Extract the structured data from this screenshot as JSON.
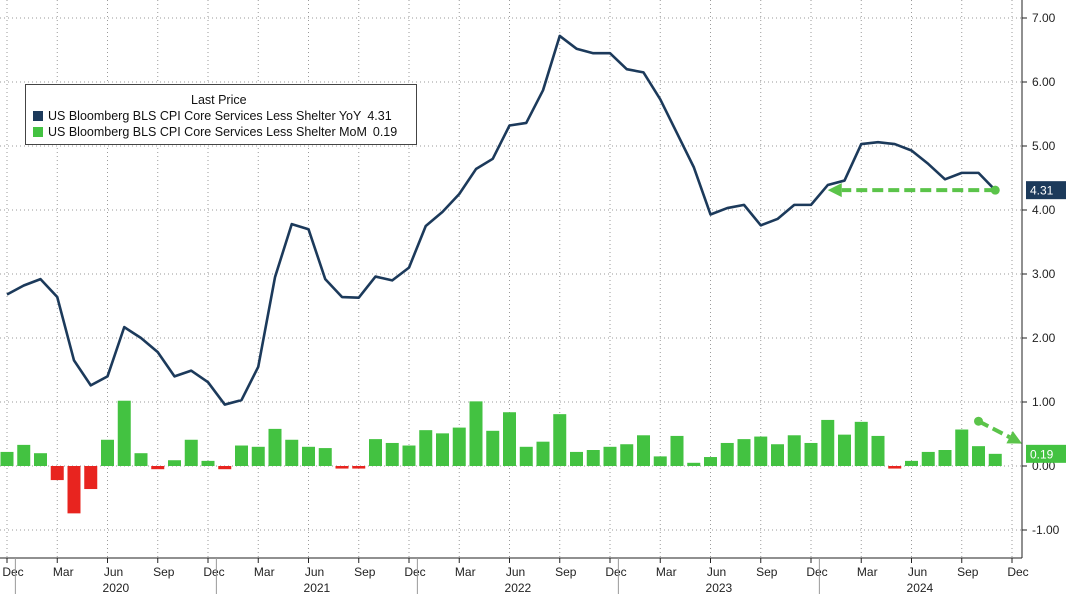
{
  "chart_data": {
    "type": "bar+line",
    "title": "",
    "legend": {
      "title": "Last Price",
      "entries": [
        {
          "name": "US Bloomberg BLS CPI Core Services Less Shelter YoY",
          "value": "4.31",
          "color": "#1c3a5b"
        },
        {
          "name": "US Bloomberg BLS CPI Core Services Less Shelter MoM",
          "value": "0.19",
          "color": "#43c241"
        }
      ],
      "placement": "top-left"
    },
    "ylim": [
      -1.2,
      7.25
    ],
    "y_ticks": [
      "7.00",
      "6.00",
      "5.00",
      "4.00",
      "3.00",
      "2.00",
      "1.00",
      "0.00",
      "-1.00"
    ],
    "x_month_labels": [
      "Dec",
      "Mar",
      "Jun",
      "Sep",
      "Dec",
      "Mar",
      "Jun",
      "Sep",
      "Dec",
      "Mar",
      "Jun",
      "Sep",
      "Dec",
      "Mar",
      "Jun",
      "Sep",
      "Dec",
      "Mar",
      "Jun",
      "Sep",
      "Dec"
    ],
    "x_year_labels": [
      "2020",
      "2021",
      "2022",
      "2023",
      "2024"
    ],
    "line_series": {
      "name": "US Bloomberg BLS CPI Core Services Less Shelter YoY",
      "color": "#1c3a5b",
      "values": [
        2.68,
        2.82,
        2.92,
        2.64,
        1.65,
        1.26,
        1.4,
        2.17,
        2.0,
        1.78,
        1.4,
        1.49,
        1.31,
        0.96,
        1.03,
        1.55,
        2.95,
        3.78,
        3.7,
        2.92,
        2.64,
        2.63,
        2.96,
        2.9,
        3.1,
        3.75,
        3.97,
        4.25,
        4.64,
        4.8,
        5.32,
        5.36,
        5.87,
        6.72,
        6.52,
        6.45,
        6.45,
        6.2,
        6.15,
        5.73,
        5.2,
        4.67,
        3.93,
        4.03,
        4.08,
        3.76,
        3.86,
        4.08,
        4.08,
        4.39,
        4.46,
        5.03,
        5.06,
        5.03,
        4.93,
        4.72,
        4.48,
        4.58,
        4.58,
        4.31
      ],
      "last_label": "4.31"
    },
    "bar_series": {
      "name": "US Bloomberg BLS CPI Core Services Less Shelter MoM",
      "positive_color": "#43c241",
      "negative_color": "#e8241f",
      "values": [
        0.22,
        0.33,
        0.2,
        -0.22,
        -0.74,
        -0.36,
        0.41,
        1.02,
        0.2,
        -0.05,
        0.09,
        0.41,
        0.08,
        -0.05,
        0.32,
        0.3,
        0.58,
        0.41,
        0.3,
        0.28,
        -0.04,
        -0.04,
        0.42,
        0.36,
        0.32,
        0.56,
        0.51,
        0.6,
        1.01,
        0.55,
        0.84,
        0.3,
        0.38,
        0.81,
        0.22,
        0.25,
        0.3,
        0.34,
        0.48,
        0.15,
        0.47,
        0.05,
        0.14,
        0.36,
        0.42,
        0.46,
        0.34,
        0.48,
        0.36,
        0.72,
        0.49,
        0.69,
        0.47,
        -0.04,
        0.08,
        0.22,
        0.25,
        0.57,
        0.31,
        0.19
      ],
      "last_label": "0.19"
    },
    "annotations": [
      {
        "type": "dashed-arrow",
        "color": "#5bc44a",
        "from": [
          59,
          4.31
        ],
        "to": [
          49,
          4.31
        ]
      },
      {
        "type": "dashed-arrow",
        "color": "#5bc44a",
        "from": [
          58,
          0.7
        ],
        "to": [
          60.6,
          0.35
        ]
      }
    ],
    "grid": "vertical-dotted and horizontal-dotted",
    "y_axis_side": "right"
  }
}
